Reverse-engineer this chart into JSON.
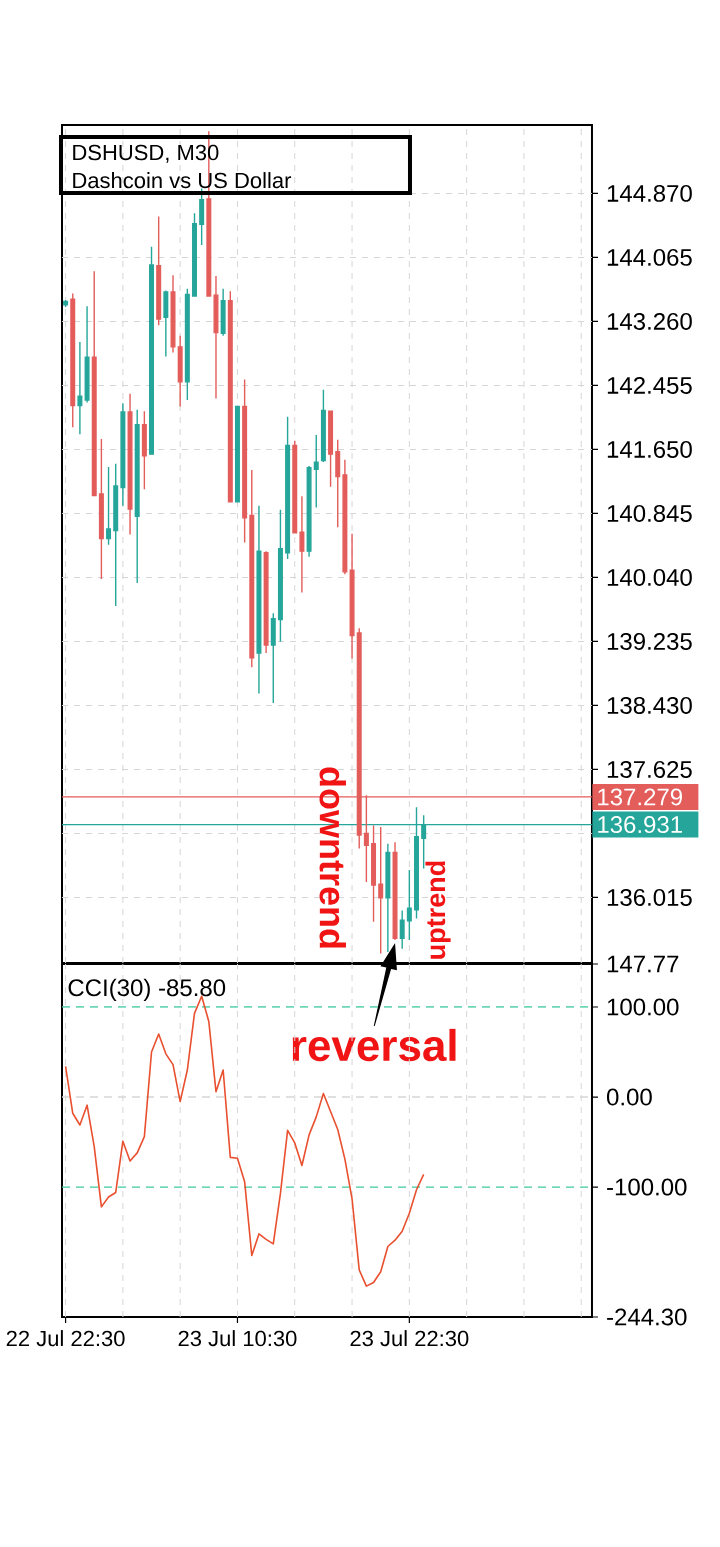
{
  "chart_data": [
    {
      "type": "candlestick",
      "title": "DSHUSD, M30",
      "subtitle": "Dashcoin vs US Dollar",
      "categories": [
        null,
        null,
        null,
        null,
        null,
        null,
        null,
        null,
        null,
        null,
        null,
        null,
        null,
        null,
        null,
        null,
        null,
        null,
        null,
        null,
        null,
        null,
        null,
        null,
        null,
        null,
        null,
        null,
        null,
        null,
        null,
        null,
        null,
        null,
        null,
        null,
        null,
        null,
        null,
        null,
        null,
        null,
        null,
        null,
        null,
        null,
        null,
        null,
        null,
        null,
        null,
        null,
        null,
        null,
        null,
        null,
        null,
        null,
        null,
        null,
        null,
        null,
        null,
        null,
        null,
        null,
        null,
        null,
        null,
        null,
        null,
        null,
        null,
        null
      ],
      "ohlc": [
        [
          143.47,
          143.53,
          143.44,
          143.51
        ],
        [
          143.54,
          143.61,
          141.93,
          142.2
        ],
        [
          142.2,
          143.0,
          141.84,
          142.32
        ],
        [
          142.27,
          143.45,
          142.24,
          142.81
        ],
        [
          142.81,
          143.89,
          141.07,
          141.07
        ],
        [
          141.09,
          141.78,
          140.02,
          140.53
        ],
        [
          140.53,
          141.43,
          140.45,
          140.65
        ],
        [
          140.63,
          141.47,
          139.68,
          141.19
        ],
        [
          141.17,
          142.23,
          140.94,
          142.12
        ],
        [
          142.12,
          142.35,
          140.58,
          140.9
        ],
        [
          140.81,
          142.15,
          139.97,
          141.96
        ],
        [
          141.96,
          142.13,
          141.15,
          141.57
        ],
        [
          141.59,
          144.2,
          141.59,
          143.97
        ],
        [
          143.96,
          144.58,
          143.21,
          143.29
        ],
        [
          143.31,
          143.65,
          142.82,
          143.63
        ],
        [
          143.63,
          143.84,
          142.87,
          142.94
        ],
        [
          142.94,
          143.08,
          142.19,
          142.5
        ],
        [
          142.5,
          143.67,
          142.27,
          143.6
        ],
        [
          143.58,
          144.62,
          143.57,
          144.49
        ],
        [
          144.48,
          144.93,
          144.22,
          144.79
        ],
        [
          144.8,
          145.65,
          143.58,
          143.58
        ],
        [
          143.59,
          143.83,
          142.29,
          143.12
        ],
        [
          143.11,
          143.67,
          143.08,
          143.52
        ],
        [
          143.52,
          143.64,
          140.99,
          140.99
        ],
        [
          140.99,
          142.19,
          140.99,
          142.19
        ],
        [
          142.19,
          142.53,
          140.48,
          140.79
        ],
        [
          140.82,
          141.39,
          138.91,
          139.03
        ],
        [
          139.09,
          140.94,
          138.58,
          140.37
        ],
        [
          140.35,
          140.37,
          139.09,
          139.19
        ],
        [
          139.19,
          139.59,
          138.46,
          139.52
        ],
        [
          139.51,
          140.89,
          139.23,
          140.4
        ],
        [
          140.35,
          142.06,
          140.27,
          141.7
        ],
        [
          141.7,
          141.76,
          140.6,
          140.6
        ],
        [
          140.61,
          141.06,
          139.85,
          140.37
        ],
        [
          140.37,
          141.44,
          140.3,
          141.42
        ],
        [
          141.4,
          141.83,
          140.92,
          141.49
        ],
        [
          141.51,
          142.4,
          141.49,
          142.14
        ],
        [
          142.13,
          142.14,
          141.18,
          141.59
        ],
        [
          141.62,
          141.77,
          140.67,
          141.31
        ],
        [
          141.33,
          141.52,
          140.08,
          140.11
        ],
        [
          140.13,
          140.59,
          139.02,
          139.31
        ],
        [
          139.34,
          139.4,
          136.63,
          136.8
        ],
        [
          136.82,
          137.3,
          136.21,
          136.67
        ],
        [
          136.69,
          136.92,
          135.71,
          136.17
        ],
        [
          136.18,
          136.9,
          135.31,
          136.01
        ],
        [
          136.01,
          136.69,
          135.33,
          136.58
        ],
        [
          136.58,
          136.71,
          135.48,
          135.5
        ],
        [
          135.5,
          135.85,
          135.37,
          135.73
        ],
        [
          135.72,
          136.36,
          135.48,
          135.88
        ],
        [
          135.86,
          137.15,
          135.75,
          136.78
        ],
        [
          136.76,
          137.05,
          136.38,
          136.93
        ],
        null,
        null,
        null,
        null,
        null,
        null,
        null,
        null,
        null,
        null,
        null,
        null,
        null,
        null,
        null,
        null,
        null,
        null,
        null,
        null,
        null,
        null,
        null
      ],
      "colors": [
        "#26a69a",
        "#e35d5b",
        "#26a69a",
        "#26a69a",
        "#e35d5b",
        "#e35d5b",
        "#26a69a",
        "#26a69a",
        "#26a69a",
        "#e35d5b",
        "#26a69a",
        "#e35d5b",
        "#26a69a",
        "#e35d5b",
        "#26a69a",
        "#e35d5b",
        "#e35d5b",
        "#26a69a",
        "#26a69a",
        "#26a69a",
        "#e35d5b",
        "#e35d5b",
        "#26a69a",
        "#e35d5b",
        "#26a69a",
        "#e35d5b",
        "#e35d5b",
        "#26a69a",
        "#e35d5b",
        "#26a69a",
        "#26a69a",
        "#26a69a",
        "#e35d5b",
        "#e35d5b",
        "#26a69a",
        "#26a69a",
        "#26a69a",
        "#e35d5b",
        "#e35d5b",
        "#e35d5b",
        "#e35d5b",
        "#e35d5b",
        "#e35d5b",
        "#e35d5b",
        "#e35d5b",
        "#26a69a",
        "#e35d5b",
        "#26a69a",
        "#26a69a",
        "#26a69a",
        "#26a69a",
        null,
        null,
        null,
        null,
        null,
        null,
        null,
        null,
        null,
        null,
        null,
        null,
        null,
        null,
        null,
        null,
        null,
        null,
        null,
        null,
        null,
        null,
        null
      ],
      "ylim": [
        135.19,
        145.73
      ],
      "yticks": [
        {
          "value": 144.87,
          "label": "144.870"
        },
        144.065,
        {
          "value": 143.26,
          "label": "143.260"
        },
        142.455,
        {
          "value": 141.65,
          "label": "141.650"
        },
        140.845,
        {
          "value": 140.04,
          "label": "140.040"
        },
        139.235,
        {
          "value": 138.43,
          "label": "138.430"
        },
        137.625,
        {
          "value": 136.82,
          "label": null
        },
        136.015
      ],
      "grid": true,
      "tick_labels": "y",
      "ref_lines": [
        {
          "axis": "y",
          "value": 137.279,
          "label": "137.279",
          "color": "#e35d5b"
        },
        {
          "axis": "y",
          "value": 136.931,
          "label": "136.931",
          "color": "#26a69a"
        }
      ],
      "annotations": [
        "downtrend",
        "uptrend",
        "reversal"
      ]
    },
    {
      "type": "line",
      "title": "CCI(30) -85.80",
      "categories": [
        "22 Jul 22:30",
        null,
        null,
        null,
        null,
        null,
        null,
        null,
        null,
        null,
        null,
        null,
        null,
        null,
        null,
        null,
        null,
        null,
        null,
        null,
        null,
        null,
        null,
        null,
        "23 Jul 10:30",
        null,
        null,
        null,
        null,
        null,
        null,
        null,
        null,
        null,
        null,
        null,
        null,
        null,
        null,
        null,
        null,
        null,
        null,
        null,
        null,
        null,
        null,
        null,
        "23 Jul 22:30",
        null,
        null,
        null,
        null,
        null,
        null,
        null,
        null,
        null,
        null,
        null,
        null,
        null,
        null,
        null,
        null,
        null,
        null,
        null,
        null,
        null,
        null,
        null,
        null,
        null
      ],
      "values": [
        34,
        -18,
        -31,
        -9,
        -55,
        -122,
        -111,
        -106,
        -49,
        -71,
        -62,
        -44,
        50,
        70,
        48,
        36,
        -5,
        30,
        93,
        112,
        84,
        6,
        30,
        -67,
        -68,
        -94,
        -176,
        -152,
        -158,
        -163,
        -107,
        -37,
        -51,
        -76,
        -42,
        -22,
        4,
        -16,
        -36,
        -69,
        -113,
        -192,
        -210,
        -206,
        -194,
        -166,
        -159,
        -149,
        -129,
        -103,
        -85.8,
        null,
        null,
        null,
        null,
        null,
        null,
        null,
        null,
        null,
        null,
        null,
        null,
        null,
        null,
        null,
        null,
        null,
        null,
        null,
        null,
        null,
        null,
        null
      ],
      "color": "#e8502f",
      "ylim": [
        -244.3,
        147.77
      ],
      "yticks": [
        147.77,
        {
          "value": 100,
          "label": "100.00"
        },
        {
          "value": 0,
          "label": "0.00"
        },
        {
          "value": -100,
          "label": "-100.00"
        },
        {
          "value": -244.3,
          "label": "-244.30"
        }
      ],
      "grid": "x",
      "ref_lines": [
        {
          "axis": "y",
          "value": 100,
          "color": "#3cc9a0",
          "line_style": "dashed"
        },
        {
          "axis": "y",
          "value": 0,
          "color": "#d6d6d6",
          "line_style": "dashed"
        },
        {
          "axis": "y",
          "value": -100,
          "color": "#3cc9a0",
          "line_style": "dashed"
        }
      ]
    }
  ]
}
